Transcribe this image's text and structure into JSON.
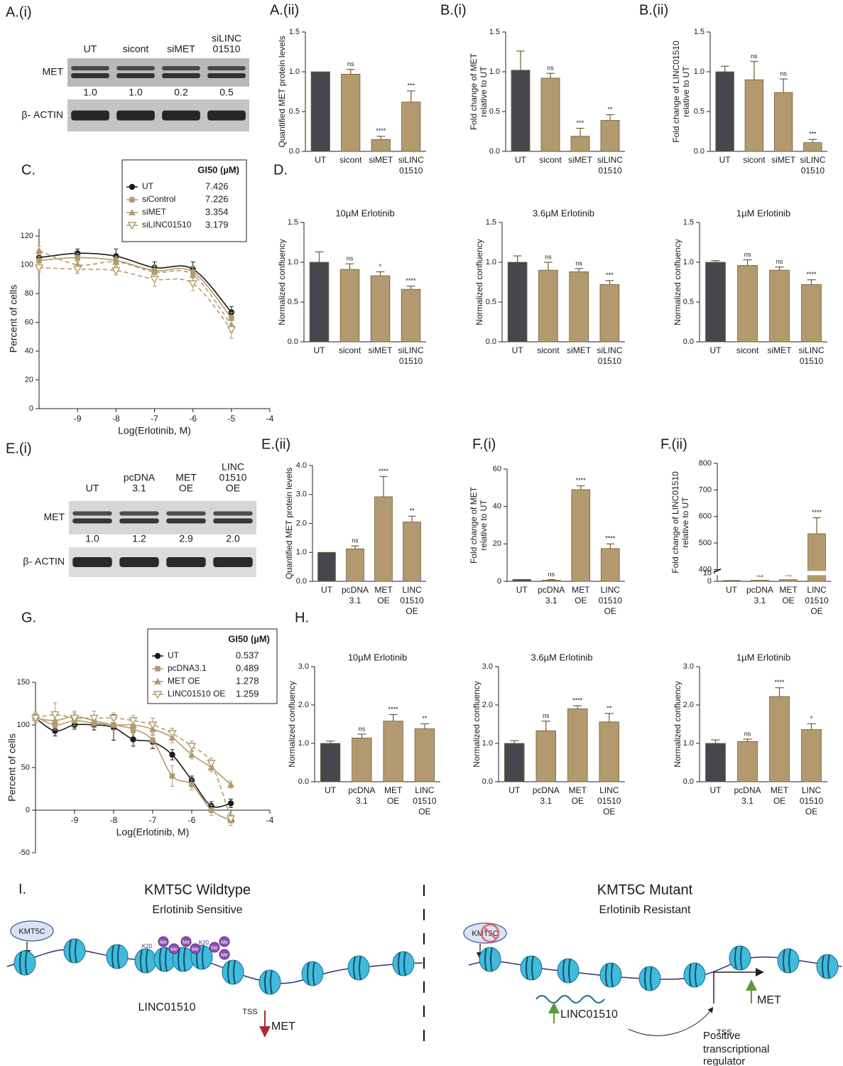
{
  "blots": [
    {
      "panel": "A.(i)",
      "lanes": [
        [
          "UT"
        ],
        [
          "sicont"
        ],
        [
          "siMET"
        ],
        [
          "siLINC",
          "01510"
        ]
      ],
      "rows": [
        "MET",
        "β- ACTIN"
      ],
      "quantification": [
        "1.0",
        "1.0",
        "0.2",
        "0.5"
      ]
    },
    {
      "panel": "E.(i)",
      "lanes": [
        [
          "UT"
        ],
        [
          "pcDNA",
          "3.1"
        ],
        [
          "MET",
          "OE"
        ],
        [
          "LINC",
          "01510",
          "OE"
        ]
      ],
      "rows": [
        "MET",
        "β- ACTIN"
      ],
      "quantification": [
        "1.0",
        "1.2",
        "2.9",
        "2.0"
      ]
    }
  ],
  "chart_data": [
    {
      "type": "bar",
      "panel": "A.(ii)",
      "ylabel": [
        "Quantified MET protein levels"
      ],
      "categories": [
        [
          "UT"
        ],
        [
          "sicont"
        ],
        [
          "siMET"
        ],
        [
          "siLINC",
          "01510"
        ]
      ],
      "values": [
        1,
        0.97,
        0.15,
        0.62
      ],
      "errors": [
        null,
        0.06,
        0.04,
        0.14
      ],
      "annotations": [
        null,
        "ns",
        "****",
        "***"
      ],
      "colors": [
        "#45474d",
        "#b39a6e",
        "#b39a6e",
        "#b39a6e"
      ],
      "ylim": [
        0,
        1.5
      ],
      "yticks": [
        {
          "value": 0,
          "label": "0.0"
        },
        0.5,
        {
          "value": 1,
          "label": "1.0"
        },
        1.5
      ]
    },
    {
      "type": "bar",
      "panel": "B.(i)",
      "ylabel": [
        "Fold change of MET",
        "relative to UT"
      ],
      "categories": [
        [
          "UT"
        ],
        [
          "sicont"
        ],
        [
          "siMET"
        ],
        [
          "siLINC",
          "01510"
        ]
      ],
      "values": [
        1.02,
        0.92,
        0.19,
        0.39
      ],
      "errors": [
        0.24,
        0.06,
        0.1,
        0.07
      ],
      "annotations": [
        null,
        "ns",
        "***",
        "**"
      ],
      "colors": [
        "#45474d",
        "#b39a6e",
        "#b39a6e",
        "#b39a6e"
      ],
      "ylim": [
        0,
        1.5
      ],
      "yticks": [
        {
          "value": 0,
          "label": "0.0"
        },
        0.5,
        {
          "value": 1,
          "label": "1.0"
        },
        1.5
      ]
    },
    {
      "type": "bar",
      "panel": "B.(ii)",
      "ylabel": [
        "Fold change of LINC01510",
        "relative to UT"
      ],
      "categories": [
        [
          "UT"
        ],
        [
          "sicont"
        ],
        [
          "siMET"
        ],
        [
          "siLINC",
          "01510"
        ]
      ],
      "values": [
        1,
        0.9,
        0.74,
        0.11
      ],
      "errors": [
        0.07,
        0.23,
        0.17,
        0.04
      ],
      "annotations": [
        null,
        "ns",
        "ns",
        "***"
      ],
      "colors": [
        "#45474d",
        "#b39a6e",
        "#b39a6e",
        "#b39a6e"
      ],
      "ylim": [
        0,
        1.5
      ],
      "yticks": [
        {
          "value": 0,
          "label": "0.0"
        },
        0.5,
        {
          "value": 1,
          "label": "1.0"
        },
        1.5
      ]
    },
    {
      "type": "curve",
      "panel": "C.",
      "ylabel": "Percent of cells",
      "xlabel": "Log(Erlotinib, M)",
      "legend_title": "GI50 (µM)",
      "x": [
        -10,
        -9,
        -8,
        -7,
        -6,
        -5
      ],
      "series": [
        {
          "name": "UT",
          "gi50": 7.426,
          "color": "#1a1a1a",
          "marker": "circle",
          "line_style": "solid",
          "values": [
            105,
            108,
            106,
            98,
            97,
            67
          ],
          "errors": [
            3,
            3,
            5,
            4,
            5,
            4
          ]
        },
        {
          "name": "siControl",
          "gi50": 7.226,
          "color": "#b39a6e",
          "marker": "square",
          "line_style": "solid",
          "values": [
            103,
            105,
            103,
            96,
            95,
            63
          ],
          "errors": [
            3,
            3,
            3,
            4,
            4,
            4
          ]
        },
        {
          "name": "siMET",
          "gi50": 3.354,
          "color": "#b39a6e",
          "marker": "triangle",
          "line_style": "dashed",
          "values": [
            110,
            100,
            102,
            95,
            93,
            58
          ],
          "errors": [
            3,
            3,
            3,
            4,
            5,
            5
          ]
        },
        {
          "name": "siLINC01510",
          "gi50": 3.179,
          "color": "#b39a6e",
          "marker": "triangle-down-open",
          "line_style": "dashed",
          "values": [
            98,
            97,
            96,
            90,
            87,
            55
          ],
          "errors": [
            3,
            3,
            3,
            5,
            5,
            6
          ]
        }
      ],
      "xlim": [
        -10,
        -4
      ],
      "xticks": [
        -9,
        -8,
        -7,
        -6,
        -5,
        -4
      ],
      "ylim": [
        0,
        125
      ],
      "yticks": [
        0,
        20,
        40,
        60,
        80,
        100,
        120
      ]
    },
    {
      "type": "bar",
      "panel": "D.",
      "title": "10µM Erlotinib",
      "ylabel": [
        "Normalized confluency"
      ],
      "categories": [
        [
          "UT"
        ],
        [
          "sicont"
        ],
        [
          "siMET"
        ],
        [
          "siLINC",
          "01510"
        ]
      ],
      "values": [
        1,
        0.91,
        0.83,
        0.66
      ],
      "errors": [
        0.13,
        0.07,
        0.05,
        0.04
      ],
      "annotations": [
        null,
        "ns",
        "*",
        "****"
      ],
      "colors": [
        "#45474d",
        "#b39a6e",
        "#b39a6e",
        "#b39a6e"
      ],
      "ylim": [
        0,
        1.5
      ],
      "yticks": [
        {
          "value": 0,
          "label": "0.0"
        },
        0.5,
        {
          "value": 1,
          "label": "1.0"
        },
        1.5
      ]
    },
    {
      "type": "bar",
      "title": "3.6µM Erlotinib",
      "ylabel": [
        "Normalized confluency"
      ],
      "categories": [
        [
          "UT"
        ],
        [
          "sicont"
        ],
        [
          "siMET"
        ],
        [
          "siLINC",
          "01510"
        ]
      ],
      "values": [
        1,
        0.9,
        0.88,
        0.72
      ],
      "errors": [
        0.08,
        0.1,
        0.04,
        0.05
      ],
      "annotations": [
        null,
        "ns",
        "ns",
        "***"
      ],
      "colors": [
        "#45474d",
        "#b39a6e",
        "#b39a6e",
        "#b39a6e"
      ],
      "ylim": [
        0,
        1.5
      ],
      "yticks": [
        {
          "value": 0,
          "label": "0.0"
        },
        0.5,
        {
          "value": 1,
          "label": "1.0"
        },
        1.5
      ]
    },
    {
      "type": "bar",
      "title": "1µM Erlotinib",
      "ylabel": [
        "Normalized confluency"
      ],
      "categories": [
        [
          "UT"
        ],
        [
          "sicont"
        ],
        [
          "siMET"
        ],
        [
          "siLINC",
          "01510"
        ]
      ],
      "values": [
        1,
        0.96,
        0.9,
        0.72
      ],
      "errors": [
        0.02,
        0.07,
        0.04,
        0.06
      ],
      "annotations": [
        null,
        "ns",
        "ns",
        "****"
      ],
      "colors": [
        "#45474d",
        "#b39a6e",
        "#b39a6e",
        "#b39a6e"
      ],
      "ylim": [
        0,
        1.5
      ],
      "yticks": [
        {
          "value": 0,
          "label": "0.0"
        },
        0.5,
        {
          "value": 1,
          "label": "1.0"
        },
        1.5
      ]
    },
    {
      "type": "bar",
      "panel": "E.(ii)",
      "ylabel": [
        "Quantified MET protein levels"
      ],
      "categories": [
        [
          "UT"
        ],
        [
          "pcDNA",
          "3.1"
        ],
        [
          "MET",
          "OE"
        ],
        [
          "LINC",
          "01510",
          "OE"
        ]
      ],
      "values": [
        1,
        1.12,
        2.92,
        2.05
      ],
      "errors": [
        null,
        0.1,
        0.7,
        0.2
      ],
      "annotations": [
        null,
        "ns",
        "****",
        "**"
      ],
      "colors": [
        "#45474d",
        "#b39a6e",
        "#b39a6e",
        "#b39a6e"
      ],
      "ylim": [
        0,
        4
      ],
      "yticks": [
        {
          "value": 0,
          "label": "0.0"
        },
        {
          "value": 1,
          "label": "1.0"
        },
        {
          "value": 2,
          "label": "2.0"
        },
        {
          "value": 3,
          "label": "3.0"
        },
        {
          "value": 4,
          "label": "4.0"
        }
      ]
    },
    {
      "type": "bar",
      "panel": "F.(i)",
      "ylabel": [
        "Fold change of MET",
        "relative to UT"
      ],
      "categories": [
        [
          "UT"
        ],
        [
          "pcDNA",
          "3.1"
        ],
        [
          "MET",
          "OE"
        ],
        [
          "LINC",
          "01510",
          "OE"
        ]
      ],
      "values": [
        1,
        0.6,
        49,
        17.5
      ],
      "errors": [
        null,
        0.3,
        2,
        2.5
      ],
      "annotations": [
        null,
        "ns",
        "****",
        "****"
      ],
      "colors": [
        "#45474d",
        "#b39a6e",
        "#b39a6e",
        "#b39a6e"
      ],
      "ylim": [
        0,
        60
      ],
      "yticks": [
        0,
        20,
        40,
        60
      ]
    },
    {
      "type": "bar",
      "panel": "F.(ii)",
      "ylabel": [
        "Fold change of LINC01510",
        "relative to UT"
      ],
      "categories": [
        [
          "UT"
        ],
        [
          "pcDNA",
          "3.1"
        ],
        [
          "MET",
          "OE"
        ],
        [
          "LINC",
          "01510",
          "OE"
        ]
      ],
      "values": [
        1,
        1.3,
        2,
        535
      ],
      "errors": [
        null,
        null,
        null,
        60
      ],
      "annotations": [
        null,
        "ns",
        "ns",
        "****"
      ],
      "colors": [
        "#45474d",
        "#b39a6e",
        "#b39a6e",
        "#b39a6e"
      ],
      "ylim": [
        0,
        800
      ],
      "ybreak": [
        10,
        400
      ],
      "yticks": [
        0,
        10,
        400,
        500,
        600,
        700,
        800
      ]
    },
    {
      "type": "curve",
      "panel": "G.",
      "ylabel": "Percent of cells",
      "xlabel": "Log(Erlotinib, M)",
      "legend_title": "GI50 (µM)",
      "x": [
        -10,
        -9.5,
        -9,
        -8.5,
        -8,
        -7.5,
        -7,
        -6.5,
        -6,
        -5.5,
        -5
      ],
      "series": [
        {
          "name": "UT",
          "gi50": 0.537,
          "color": "#1a1a1a",
          "marker": "circle",
          "line_style": "solid",
          "values": [
            108,
            93,
            100,
            100,
            97,
            83,
            80,
            65,
            35,
            5,
            8
          ],
          "errors": [
            5,
            6,
            5,
            6,
            15,
            8,
            8,
            6,
            5,
            5,
            5
          ]
        },
        {
          "name": "pcDNA3.1",
          "gi50": 0.489,
          "color": "#b39a6e",
          "marker": "square",
          "line_style": "solid",
          "values": [
            110,
            100,
            105,
            102,
            100,
            95,
            82,
            40,
            30,
            0,
            -12
          ],
          "errors": [
            5,
            6,
            6,
            5,
            6,
            6,
            8,
            12,
            6,
            6,
            6
          ]
        },
        {
          "name": "MET OE",
          "gi50": 1.278,
          "color": "#b39a6e",
          "marker": "triangle",
          "line_style": "solid",
          "values": [
            108,
            105,
            110,
            105,
            100,
            100,
            95,
            85,
            65,
            50,
            30
          ],
          "errors": [
            5,
            8,
            6,
            6,
            6,
            6,
            7,
            6,
            5,
            5,
            4
          ]
        },
        {
          "name": "LINC01510 OE",
          "gi50": 1.259,
          "color": "#b39a6e",
          "marker": "triangle-down-open",
          "line_style": "dashed",
          "values": [
            108,
            112,
            108,
            108,
            108,
            105,
            100,
            90,
            75,
            55,
            -10
          ],
          "errors": [
            5,
            14,
            6,
            8,
            6,
            6,
            8,
            6,
            6,
            6,
            5
          ]
        }
      ],
      "xlim": [
        -10,
        -4
      ],
      "xticks": [
        -9,
        -8,
        -7,
        -6,
        -5,
        -4
      ],
      "ylim": [
        -50,
        150
      ],
      "yticks": [
        -50,
        0,
        50,
        100,
        150
      ]
    },
    {
      "type": "bar",
      "panel": "H.",
      "title": "10µM Erlotinib",
      "ylabel": [
        "Normalized confluency"
      ],
      "categories": [
        [
          "UT"
        ],
        [
          "pcDNA",
          "3.1"
        ],
        [
          "MET",
          "OE"
        ],
        [
          "LINC",
          "01510",
          "OE"
        ]
      ],
      "values": [
        1,
        1.14,
        1.58,
        1.38
      ],
      "errors": [
        0.06,
        0.1,
        0.17,
        0.13
      ],
      "annotations": [
        null,
        "ns",
        "****",
        "**"
      ],
      "colors": [
        "#45474d",
        "#b39a6e",
        "#b39a6e",
        "#b39a6e"
      ],
      "ylim": [
        0,
        3
      ],
      "yticks": [
        {
          "value": 0,
          "label": "0.0"
        },
        {
          "value": 1,
          "label": "1.0"
        },
        {
          "value": 2,
          "label": "2.0"
        },
        {
          "value": 3,
          "label": "3.0"
        }
      ]
    },
    {
      "type": "bar",
      "title": "3.6µM Erlotinib",
      "ylabel": [
        "Normalized confluency"
      ],
      "categories": [
        [
          "UT"
        ],
        [
          "pcDNA",
          "3.1"
        ],
        [
          "MET",
          "OE"
        ],
        [
          "LINC",
          "01510",
          "OE"
        ]
      ],
      "values": [
        1,
        1.33,
        1.9,
        1.56
      ],
      "errors": [
        0.07,
        0.25,
        0.08,
        0.22
      ],
      "annotations": [
        null,
        "ns",
        "****",
        "**"
      ],
      "colors": [
        "#45474d",
        "#b39a6e",
        "#b39a6e",
        "#b39a6e"
      ],
      "ylim": [
        0,
        3
      ],
      "yticks": [
        {
          "value": 0,
          "label": "0.0"
        },
        {
          "value": 1,
          "label": "1.0"
        },
        {
          "value": 2,
          "label": "2.0"
        },
        {
          "value": 3,
          "label": "3.0"
        }
      ]
    },
    {
      "type": "bar",
      "title": "1µM Erlotinib",
      "ylabel": [
        "Normalized confluency"
      ],
      "categories": [
        [
          "UT"
        ],
        [
          "pcDNA",
          "3.1"
        ],
        [
          "MET",
          "OE"
        ],
        [
          "LINC",
          "01510",
          "OE"
        ]
      ],
      "values": [
        1,
        1.05,
        2.22,
        1.36
      ],
      "errors": [
        0.09,
        0.06,
        0.23,
        0.15
      ],
      "annotations": [
        null,
        "ns",
        "****",
        "*"
      ],
      "colors": [
        "#45474d",
        "#b39a6e",
        "#b39a6e",
        "#b39a6e"
      ],
      "ylim": [
        0,
        3
      ],
      "yticks": [
        {
          "value": 0,
          "label": "0.0"
        },
        {
          "value": 1,
          "label": "1.0"
        },
        {
          "value": 2,
          "label": "2.0"
        },
        {
          "value": 3,
          "label": "3.0"
        }
      ]
    }
  ],
  "diagram": {
    "label": "I.",
    "left": {
      "title": "KMT5C Wildtype",
      "subtitle": "Erlotinib Sensitive",
      "enzyme": "KMT5C",
      "methyl_site": "K20",
      "methyl_mark": "Me",
      "lncrna": "LINC01510",
      "tss": "TSS",
      "gene": "MET"
    },
    "right": {
      "title": "KMT5C Mutant",
      "subtitle": "Erlotinib Resistant",
      "enzyme": "KMT5C",
      "tss": "TSS",
      "gene": "MET",
      "lncrna": "LINC01510",
      "regulator": [
        "Positive",
        "transcriptional",
        "regulator"
      ]
    }
  }
}
